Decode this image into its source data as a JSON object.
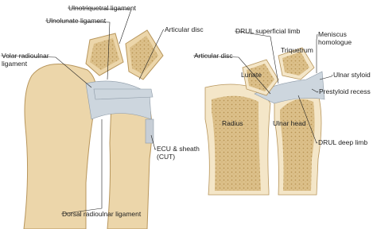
{
  "labels": [
    {
      "lines": [
        "Ulnotriquetral ligament"
      ]
    },
    {
      "lines": [
        "Ulnolunate ligament"
      ]
    },
    {
      "lines": [
        "Articular disc"
      ]
    },
    {
      "lines": [
        "Volar radioulnar",
        "ligament"
      ]
    },
    {
      "lines": [
        "ECU & sheath",
        "(CUT)"
      ]
    },
    {
      "lines": [
        "Dorsal radioulnar ligament"
      ]
    },
    {
      "lines": [
        "DRUL superficial limb"
      ]
    },
    {
      "lines": [
        "Meniscus",
        "homologue"
      ]
    },
    {
      "lines": [
        "Articular disc"
      ]
    },
    {
      "lines": [
        "Triquetrum"
      ]
    },
    {
      "lines": [
        "Lunate"
      ]
    },
    {
      "lines": [
        "Ulnar styloid"
      ]
    },
    {
      "lines": [
        "Radius"
      ]
    },
    {
      "lines": [
        "Ulnar head"
      ]
    },
    {
      "lines": [
        "Prestyloid recess"
      ]
    },
    {
      "lines": [
        "DRUL deep limb"
      ]
    }
  ]
}
